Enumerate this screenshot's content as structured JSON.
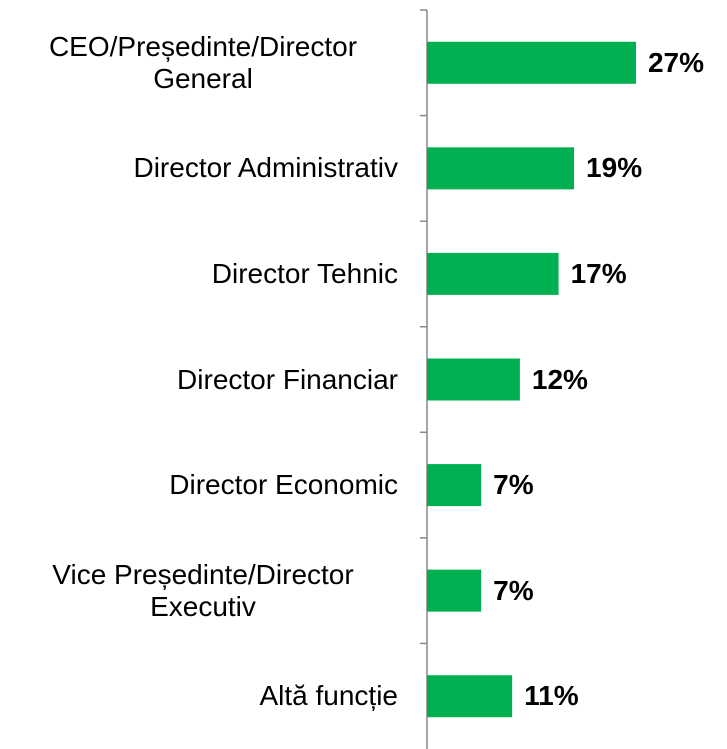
{
  "chart_data": {
    "type": "bar",
    "orientation": "horizontal",
    "categories": [
      "CEO/Președinte/Director General",
      "Director Administrativ",
      "Director Tehnic",
      "Director Financiar",
      "Director Economic",
      "Vice Președinte/Director Executiv",
      "Altă funcție"
    ],
    "values": [
      27,
      19,
      17,
      12,
      7,
      7,
      11
    ],
    "value_labels": [
      "27%",
      "19%",
      "17%",
      "12%",
      "7%",
      "7%",
      "11%"
    ],
    "color": "#00b050"
  }
}
